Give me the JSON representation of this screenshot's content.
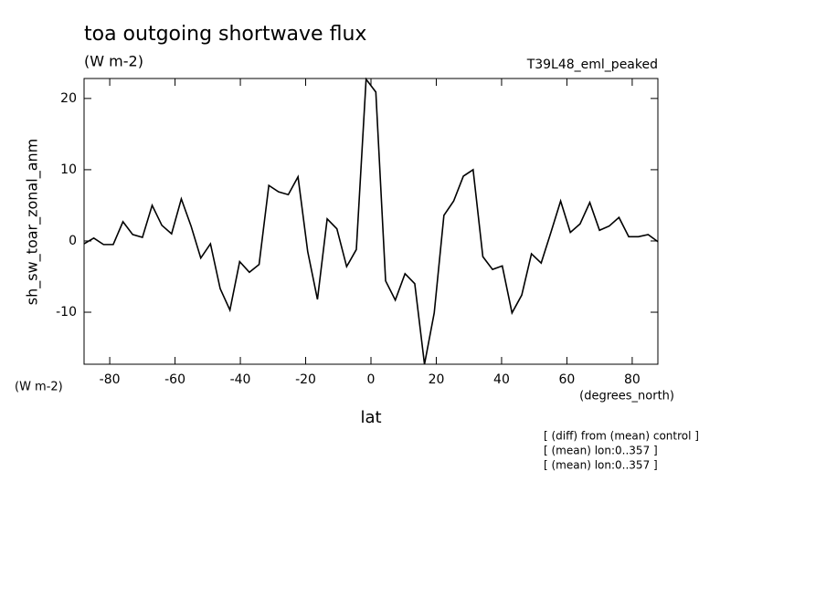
{
  "chart_data": {
    "type": "line",
    "title": "toa outgoing shortwave flux",
    "subtitle": "(W m-2)",
    "dataset": "T39L48_eml_peaked",
    "ylabel": "sh_sw_toar_zonal_anm",
    "yunits": "(W m-2)",
    "xlabel": "lat",
    "xunits": "(degrees_north)",
    "notes": [
      "[ (diff) from (mean) control ]",
      "[ (mean) lon:0..357 ]",
      "[ (mean) lon:0..357 ]"
    ],
    "color": "#000000",
    "x": [
      -87.86,
      -84.88,
      -81.9,
      -78.93,
      -75.95,
      -72.97,
      -69.99,
      -67.01,
      -64.04,
      -61.06,
      -58.08,
      -55.1,
      -52.12,
      -49.15,
      -46.17,
      -43.19,
      -40.21,
      -37.23,
      -34.26,
      -31.28,
      -28.3,
      -25.32,
      -22.34,
      -19.37,
      -16.39,
      -13.41,
      -10.43,
      -7.45,
      -4.48,
      -1.49,
      1.49,
      4.48,
      7.45,
      10.43,
      13.41,
      16.39,
      19.37,
      22.34,
      25.32,
      28.3,
      31.28,
      34.26,
      37.23,
      40.21,
      43.19,
      46.17,
      49.15,
      52.12,
      55.1,
      58.08,
      61.06,
      64.04,
      67.01,
      69.99,
      72.97,
      75.95,
      78.93,
      81.9,
      84.88,
      87.86
    ],
    "values": [
      -0.4,
      0.4,
      -0.5,
      -0.5,
      2.7,
      0.9,
      0.5,
      5.0,
      2.2,
      1.0,
      5.9,
      2.1,
      -2.4,
      -0.4,
      -6.7,
      -9.7,
      -2.9,
      -4.4,
      -3.3,
      7.8,
      6.9,
      6.5,
      9.0,
      -1.5,
      -8.2,
      3.1,
      1.7,
      -3.6,
      -1.2,
      22.7,
      20.9,
      -5.6,
      -8.3,
      -4.6,
      -6.0,
      -17.3,
      -10.1,
      3.6,
      5.6,
      9.1,
      10.0,
      -2.2,
      -4.0,
      -3.5,
      -10.1,
      -7.6,
      -1.8,
      -3.1,
      1.2,
      5.6,
      1.2,
      2.4,
      5.4,
      1.5,
      2.1,
      3.3,
      0.6,
      0.6,
      0.9,
      -0.1
    ],
    "xlim": [
      -87.86,
      87.86
    ],
    "xticks": [
      -80,
      -60,
      -40,
      -20,
      0,
      20,
      40,
      60,
      80
    ],
    "ylim": [
      -17.3,
      22.8
    ],
    "yticks": [
      -10,
      0,
      10,
      20
    ]
  }
}
